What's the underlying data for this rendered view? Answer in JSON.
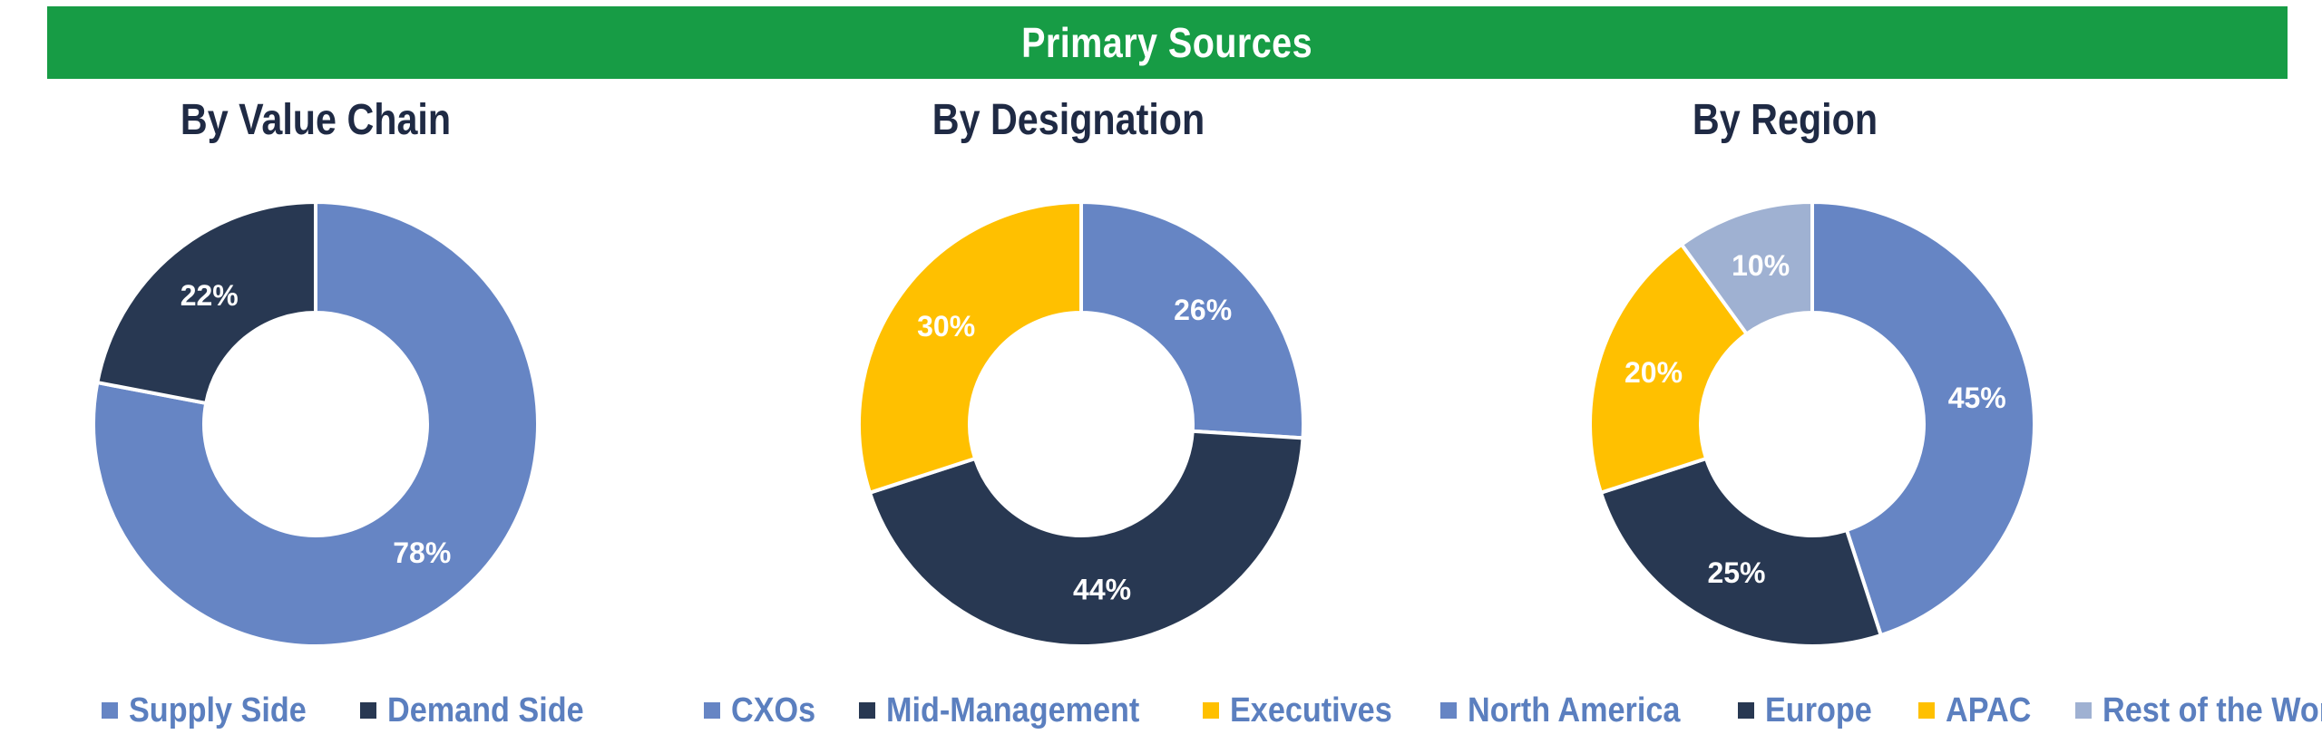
{
  "header": {
    "title": "Primary Sources"
  },
  "chart_data": [
    {
      "type": "pie",
      "title": "By Value Chain",
      "categories": [
        "Supply Side",
        "Demand Side"
      ],
      "values": [
        78,
        22
      ],
      "labels": [
        "78%",
        "22%"
      ],
      "colors": [
        "#6685c4",
        "#283852"
      ],
      "legend": "bottom"
    },
    {
      "type": "pie",
      "title": "By Designation",
      "categories": [
        "CXOs",
        "Mid-Management",
        "Executives"
      ],
      "values": [
        26,
        44,
        30
      ],
      "labels": [
        "26%",
        "44%",
        "30%"
      ],
      "colors": [
        "#6685c4",
        "#283852",
        "#ffc000"
      ],
      "legend": "bottom"
    },
    {
      "type": "pie",
      "title": "By Region",
      "categories": [
        "North America",
        "Europe",
        "APAC",
        "Rest of the World"
      ],
      "values": [
        45,
        25,
        20,
        10
      ],
      "labels": [
        "45%",
        "25%",
        "20%",
        "10%"
      ],
      "colors": [
        "#6685c4",
        "#283852",
        "#ffc000",
        "#9fb1d2"
      ],
      "legend": "bottom"
    }
  ]
}
